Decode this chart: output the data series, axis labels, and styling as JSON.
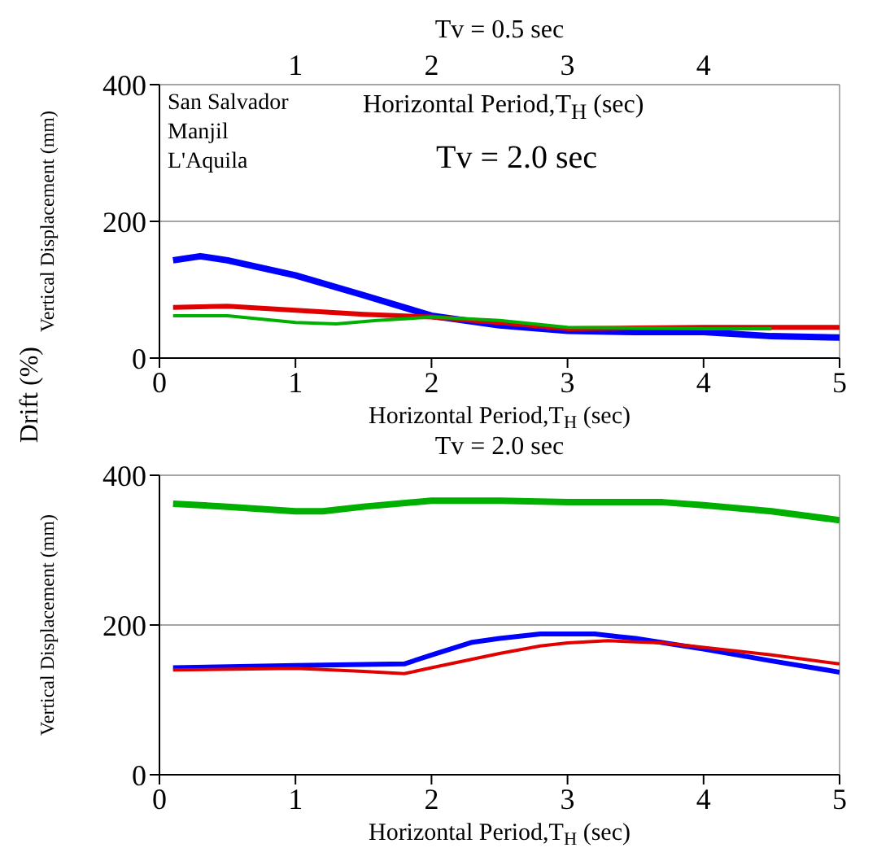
{
  "chart_data": [
    {
      "type": "line",
      "title": "Tv = 0.5 sec",
      "xlabel": "Horizontal Period,T$_{H}$ (sec)",
      "ylabel": "Vertical Displacement (mm)",
      "annotations": [
        "Horizontal Period,T$_{H}$ (sec)",
        "Tv = 2.0 sec",
        "San Salvador",
        "Manjil",
        "L'Aquila",
        "Drift (%)"
      ],
      "xlim": [
        0,
        5
      ],
      "xticks": [
        0,
        1,
        2,
        3,
        4,
        5
      ],
      "x2lim": [
        0,
        5
      ],
      "x2ticks": [
        1,
        2,
        3,
        4
      ],
      "ylim": [
        0,
        400
      ],
      "yticks": [
        0,
        200,
        400
      ],
      "grid": true,
      "series": [
        {
          "color": "#0000ff",
          "x": [
            0.1,
            0.3,
            0.5,
            1.0,
            1.5,
            2.0,
            2.5,
            3.0,
            3.5,
            4.0,
            4.5,
            5.0
          ],
          "values": [
            143,
            149,
            143,
            121,
            92,
            62,
            48,
            40,
            38,
            38,
            32,
            30
          ]
        },
        {
          "color": "#e00000",
          "x": [
            0.1,
            0.5,
            1.0,
            1.5,
            2.0,
            2.5,
            3.0,
            3.5,
            4.0,
            4.5,
            5.0
          ],
          "values": [
            74,
            76,
            70,
            64,
            60,
            52,
            43,
            44,
            45,
            45,
            45
          ]
        },
        {
          "color": "#00b000",
          "x": [
            0.1,
            0.5,
            1.0,
            1.3,
            1.6,
            2.0,
            2.5,
            3.0,
            3.5,
            4.0,
            4.5
          ],
          "values": [
            62,
            62,
            52,
            50,
            55,
            60,
            55,
            45,
            44,
            43,
            43
          ]
        }
      ]
    },
    {
      "type": "line",
      "title": "Tv = 2.0 sec",
      "xlabel": "Horizontal Period,T$_{H}$ (sec)",
      "ylabel": "Vertical Displacement (mm)",
      "xlim": [
        0,
        5
      ],
      "xticks": [
        0,
        1,
        2,
        3,
        4,
        5
      ],
      "ylim": [
        0,
        400
      ],
      "yticks": [
        0,
        200,
        400
      ],
      "grid": true,
      "series": [
        {
          "color": "#00b000",
          "x": [
            0.1,
            0.5,
            1.0,
            1.2,
            1.5,
            2.0,
            2.5,
            3.0,
            3.7,
            4.0,
            4.5,
            5.0
          ],
          "values": [
            362,
            358,
            352,
            352,
            358,
            366,
            366,
            364,
            364,
            360,
            352,
            340
          ]
        },
        {
          "color": "#0000ff",
          "x": [
            0.1,
            1.0,
            1.8,
            2.0,
            2.3,
            2.5,
            2.8,
            3.2,
            3.5,
            4.0,
            4.5,
            5.0
          ],
          "values": [
            143,
            146,
            148,
            160,
            177,
            182,
            188,
            188,
            182,
            168,
            152,
            137
          ]
        },
        {
          "color": "#e00000",
          "x": [
            0.1,
            1.0,
            1.5,
            1.8,
            2.0,
            2.5,
            2.8,
            3.0,
            3.3,
            3.7,
            4.0,
            4.5,
            5.0
          ],
          "values": [
            140,
            142,
            138,
            135,
            143,
            162,
            172,
            176,
            179,
            176,
            170,
            160,
            148
          ]
        }
      ]
    }
  ]
}
